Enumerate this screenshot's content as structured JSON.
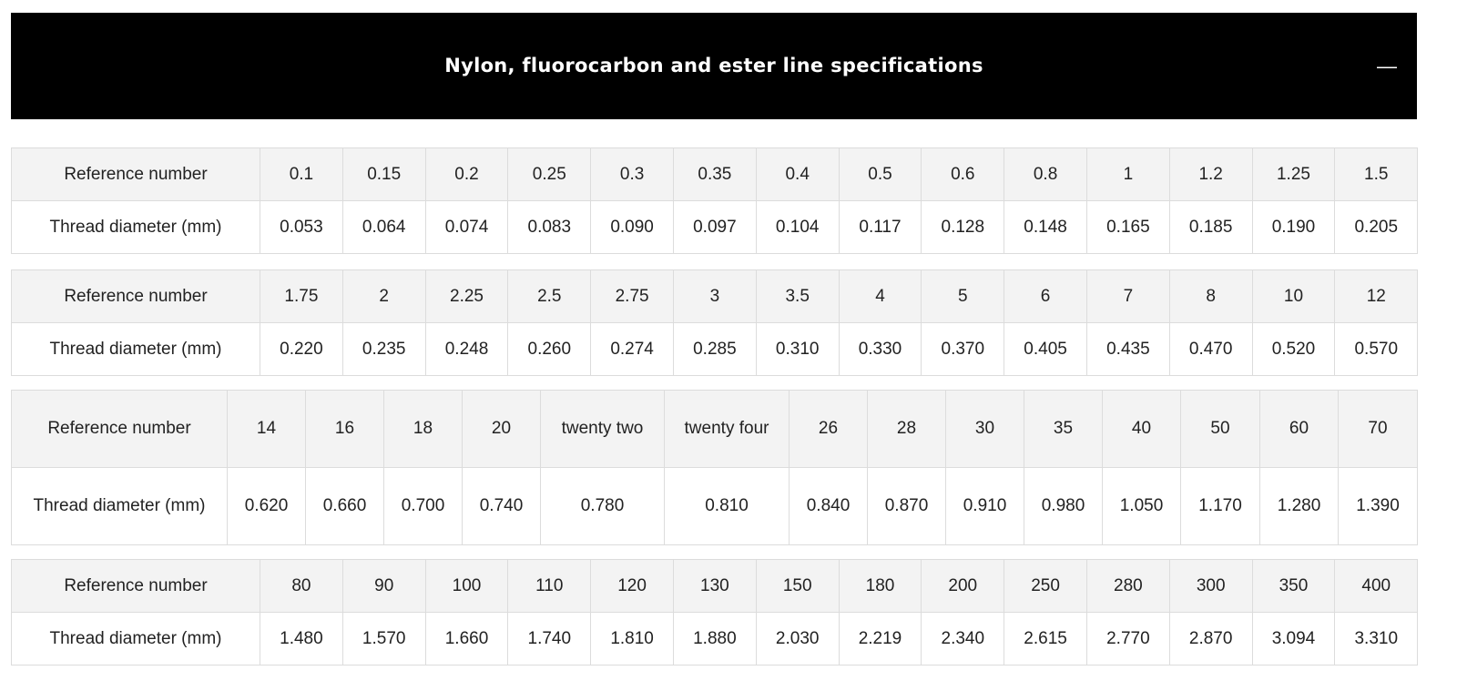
{
  "header": {
    "title": "Nylon, fluorocarbon and ester line specifications",
    "collapse_icon": "—"
  },
  "tables": [
    {
      "rows": [
        [
          "Reference number",
          "0.1",
          "0.15",
          "0.2",
          "0.25",
          "0.3",
          "0.35",
          "0.4",
          "0.5",
          "0.6",
          "0.8",
          "1",
          "1.2",
          "1.25",
          "1.5"
        ],
        [
          "Thread diameter (mm)",
          "0.053",
          "0.064",
          "0.074",
          "0.083",
          "0.090",
          "0.097",
          "0.104",
          "0.117",
          "0.128",
          "0.148",
          "0.165",
          "0.185",
          "0.190",
          "0.205"
        ]
      ]
    },
    {
      "rows": [
        [
          "Reference number",
          "1.75",
          "2",
          "2.25",
          "2.5",
          "2.75",
          "3",
          "3.5",
          "4",
          "5",
          "6",
          "7",
          "8",
          "10",
          "12"
        ],
        [
          "Thread diameter (mm)",
          "0.220",
          "0.235",
          "0.248",
          "0.260",
          "0.274",
          "0.285",
          "0.310",
          "0.330",
          "0.370",
          "0.405",
          "0.435",
          "0.470",
          "0.520",
          "0.570"
        ]
      ]
    },
    {
      "rows": [
        [
          "Reference number",
          "14",
          "16",
          "18",
          "20",
          "twenty two",
          "twenty four",
          "26",
          "28",
          "30",
          "35",
          "40",
          "50",
          "60",
          "70"
        ],
        [
          "Thread diameter (mm)",
          "0.620",
          "0.660",
          "0.700",
          "0.740",
          "0.780",
          "0.810",
          "0.840",
          "0.870",
          "0.910",
          "0.980",
          "1.050",
          "1.170",
          "1.280",
          "1.390"
        ]
      ]
    },
    {
      "rows": [
        [
          "Reference number",
          "80",
          "90",
          "100",
          "110",
          "120",
          "130",
          "150",
          "180",
          "200",
          "250",
          "280",
          "300",
          "350",
          "400"
        ],
        [
          "Thread diameter (mm)",
          "1.480",
          "1.570",
          "1.660",
          "1.740",
          "1.810",
          "1.880",
          "2.030",
          "2.219",
          "2.340",
          "2.615",
          "2.770",
          "2.870",
          "3.094",
          "3.310"
        ]
      ]
    }
  ]
}
